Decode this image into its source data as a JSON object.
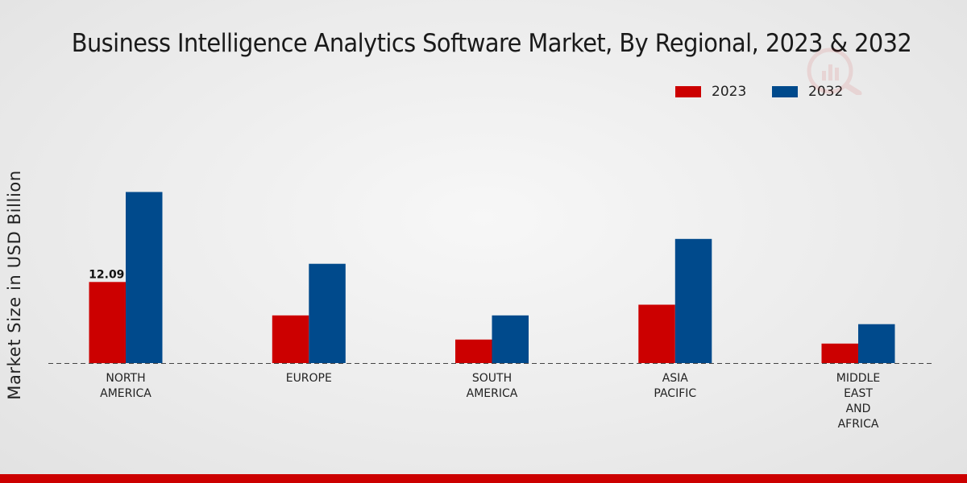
{
  "chart_data": {
    "type": "bar",
    "title": "Business Intelligence Analytics Software Market, By Regional, 2023 & 2032",
    "xlabel": "",
    "ylabel": "Market Size in USD Billion",
    "ylim": [
      0,
      30
    ],
    "categories": [
      [
        "NORTH",
        "AMERICA"
      ],
      [
        "EUROPE"
      ],
      [
        "SOUTH",
        "AMERICA"
      ],
      [
        "ASIA",
        "PACIFIC"
      ],
      [
        "MIDDLE",
        "EAST",
        "AND",
        "AFRICA"
      ]
    ],
    "series": [
      {
        "name": "2023",
        "color": "#cc0000",
        "values": [
          12.09,
          7.1,
          3.5,
          8.7,
          2.9
        ]
      },
      {
        "name": "2032",
        "color": "#004a8c",
        "values": [
          25.5,
          14.8,
          7.1,
          18.5,
          5.8
        ]
      }
    ],
    "data_labels": [
      {
        "series": 0,
        "index": 0,
        "text": "12.09"
      }
    ],
    "legend_position": "top-right",
    "grid": false
  }
}
